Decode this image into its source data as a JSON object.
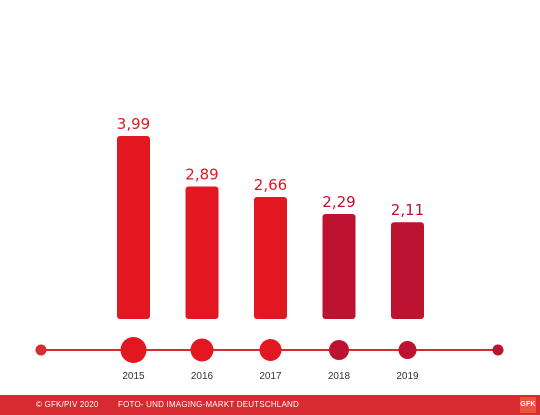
{
  "chart_data": {
    "type": "bar",
    "title": "",
    "xlabel": "",
    "ylabel": "",
    "categories": [
      "2015",
      "2016",
      "2017",
      "2018",
      "2019"
    ],
    "values": [
      3.99,
      2.89,
      2.66,
      2.29,
      2.11
    ],
    "value_labels": [
      "3,99",
      "2,89",
      "2,66",
      "2,29",
      "2,11"
    ],
    "ylim": [
      0,
      4.2
    ],
    "grid": false,
    "legend": "none",
    "colors": {
      "bright_red": "#e3171f",
      "dark_red": "#bd1230",
      "line": "#d62b30"
    },
    "bar_colors": [
      "#e3171f",
      "#e3171f",
      "#e3171f",
      "#bd1230",
      "#bd1230"
    ]
  },
  "footer": {
    "copyright": "© GFK/PIV 2020",
    "market": "FOTO- UND IMAGING-MARKT DEUTSCHLAND",
    "logo_text": "GFK"
  }
}
